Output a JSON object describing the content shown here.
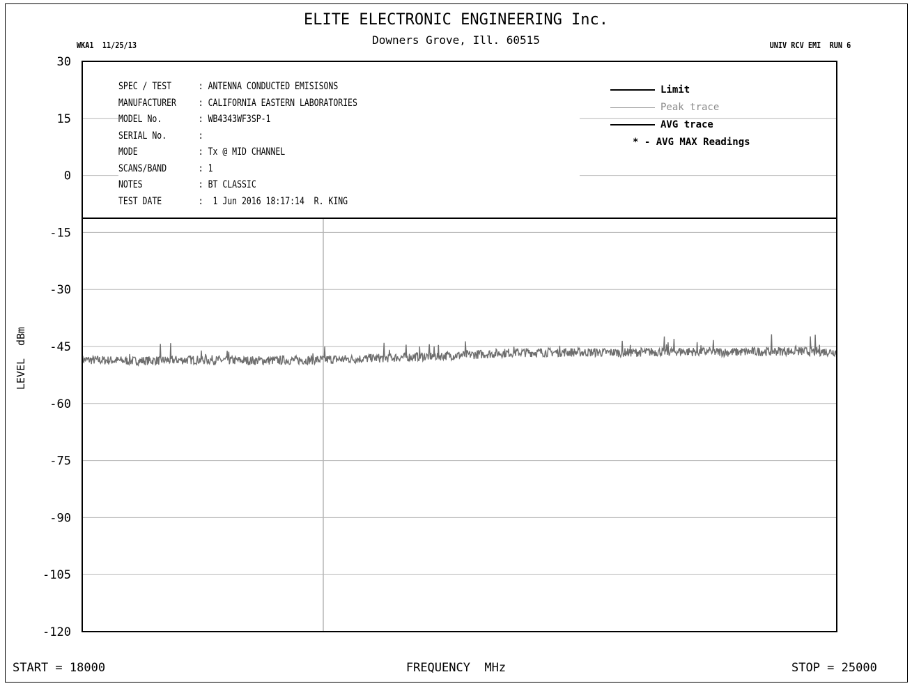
{
  "header": {
    "company": "ELITE ELECTRONIC ENGINEERING Inc.",
    "location": "Downers Grove, Ill. 60515",
    "top_left": "WKA1  11/25/13",
    "top_right": "UNIV RCV EMI  RUN 6"
  },
  "info": [
    {
      "key": "SPEC / TEST",
      "value": ": ANTENNA CONDUCTED EMISISONS"
    },
    {
      "key": "MANUFACTURER",
      "value": ": CALIFORNIA EASTERN LABORATORIES"
    },
    {
      "key": "MODEL No.",
      "value": ": WB4343WF3SP-1"
    },
    {
      "key": "SERIAL No.",
      "value": ":"
    },
    {
      "key": "MODE",
      "value": ": Tx @ MID CHANNEL"
    },
    {
      "key": "SCANS/BAND",
      "value": ": 1"
    },
    {
      "key": "NOTES",
      "value": ": BT CLASSIC"
    },
    {
      "key": "TEST DATE",
      "value": ":  1 Jun 2016 18:17:14  R. KING"
    }
  ],
  "legend": {
    "limit": "Limit",
    "peak": "Peak trace",
    "avg": "AVG trace",
    "avg_max": "* - AVG MAX Readings"
  },
  "chart_data": {
    "type": "line",
    "title": "",
    "xlabel": "FREQUENCY  MHz",
    "ylabel": "LEVEL  dBm",
    "start_label": "START = 18000",
    "stop_label": "STOP = 25000",
    "xlim": [
      18000,
      25000
    ],
    "ylim": [
      -120,
      30
    ],
    "yticks": [
      "30",
      "15",
      "0",
      "-15",
      "-30",
      "-45",
      "-60",
      "-75",
      "-90",
      "-105",
      "-120"
    ],
    "series": [
      {
        "name": "Peak trace",
        "color": "#6e6e6e",
        "x": [
          18000,
          18500,
          19000,
          19500,
          20000,
          20500,
          21000,
          21500,
          22000,
          22500,
          23000,
          23500,
          24000,
          24500,
          25000
        ],
        "y": [
          -48.5,
          -48.8,
          -48.5,
          -48.7,
          -48.6,
          -48.3,
          -47.8,
          -47.3,
          -46.6,
          -46.5,
          -46.6,
          -46.3,
          -46.5,
          -46.2,
          -46.4
        ]
      }
    ]
  }
}
